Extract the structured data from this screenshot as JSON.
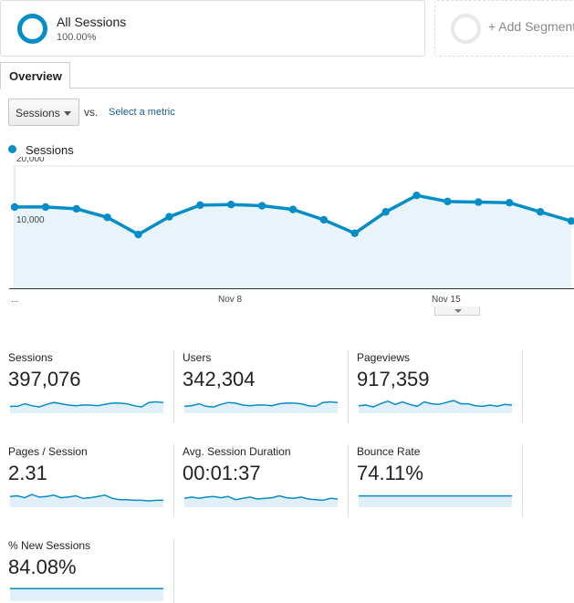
{
  "segment": {
    "name": "All Sessions",
    "percent": "100.00%",
    "color": "#058dc7"
  },
  "add_segment": {
    "label": "+ Add Segment"
  },
  "tabs": [
    {
      "label": "Overview"
    }
  ],
  "controls": {
    "metric": "Sessions",
    "vs": "vs.",
    "select_metric": "Select a metric"
  },
  "legend": {
    "label": "Sessions"
  },
  "chart_data": {
    "type": "area",
    "ylim": [
      0,
      20000
    ],
    "y_ticks": [
      "20,000",
      "10,000"
    ],
    "x_ticks": [
      "...",
      "Nov 8",
      "Nov 15"
    ],
    "series": [
      {
        "name": "Sessions",
        "values": [
          13300,
          13300,
          13000,
          11600,
          8800,
          11700,
          13600,
          13700,
          13500,
          12900,
          11200,
          9000,
          12500,
          15200,
          14200,
          14100,
          14000,
          12500,
          11000
        ]
      }
    ],
    "grid": true,
    "line_color": "#058dc7",
    "fill_color": "#e8f4fa"
  },
  "metrics": [
    {
      "label": "Sessions",
      "value": "397,076",
      "spark": [
        0.4,
        0.4,
        0.6,
        0.45,
        0.35,
        0.55,
        0.7,
        0.6,
        0.5,
        0.45,
        0.5,
        0.5,
        0.45,
        0.55,
        0.65,
        0.65,
        0.6,
        0.45,
        0.35,
        0.7,
        0.75,
        0.7
      ]
    },
    {
      "label": "Users",
      "value": "342,304",
      "spark": [
        0.4,
        0.45,
        0.6,
        0.4,
        0.35,
        0.55,
        0.7,
        0.65,
        0.5,
        0.45,
        0.5,
        0.5,
        0.45,
        0.6,
        0.65,
        0.65,
        0.6,
        0.45,
        0.4,
        0.7,
        0.75,
        0.7
      ]
    },
    {
      "label": "Pageviews",
      "value": "917,359",
      "spark": [
        0.45,
        0.5,
        0.35,
        0.6,
        0.8,
        0.55,
        0.75,
        0.55,
        0.4,
        0.75,
        0.6,
        0.55,
        0.7,
        0.85,
        0.6,
        0.6,
        0.45,
        0.4,
        0.5,
        0.4,
        0.55,
        0.5
      ]
    },
    {
      "label": "Pages / Session",
      "value": "2.31",
      "spark": [
        0.7,
        0.75,
        0.6,
        0.85,
        0.65,
        0.7,
        0.8,
        0.6,
        0.65,
        0.75,
        0.55,
        0.6,
        0.7,
        0.8,
        0.55,
        0.45,
        0.45,
        0.4,
        0.4,
        0.35,
        0.4,
        0.4
      ]
    },
    {
      "label": "Avg. Session Duration",
      "value": "00:01:37",
      "spark": [
        0.55,
        0.65,
        0.55,
        0.65,
        0.7,
        0.6,
        0.7,
        0.45,
        0.55,
        0.65,
        0.5,
        0.55,
        0.6,
        0.75,
        0.6,
        0.55,
        0.65,
        0.5,
        0.45,
        0.4,
        0.55,
        0.5
      ]
    },
    {
      "label": "Bounce Rate",
      "value": "74.11%",
      "spark": [
        0.74,
        0.74,
        0.74,
        0.74,
        0.74,
        0.74,
        0.74,
        0.74,
        0.74,
        0.74,
        0.74,
        0.74,
        0.74,
        0.74,
        0.74,
        0.74,
        0.74,
        0.74,
        0.74,
        0.74,
        0.74,
        0.74
      ]
    },
    {
      "label": "% New Sessions",
      "value": "84.08%",
      "spark": [
        0.84,
        0.84,
        0.84,
        0.84,
        0.84,
        0.84,
        0.84,
        0.84,
        0.84,
        0.84,
        0.84,
        0.84,
        0.84,
        0.84,
        0.84,
        0.84,
        0.84,
        0.84,
        0.84,
        0.84,
        0.84,
        0.84
      ]
    }
  ]
}
